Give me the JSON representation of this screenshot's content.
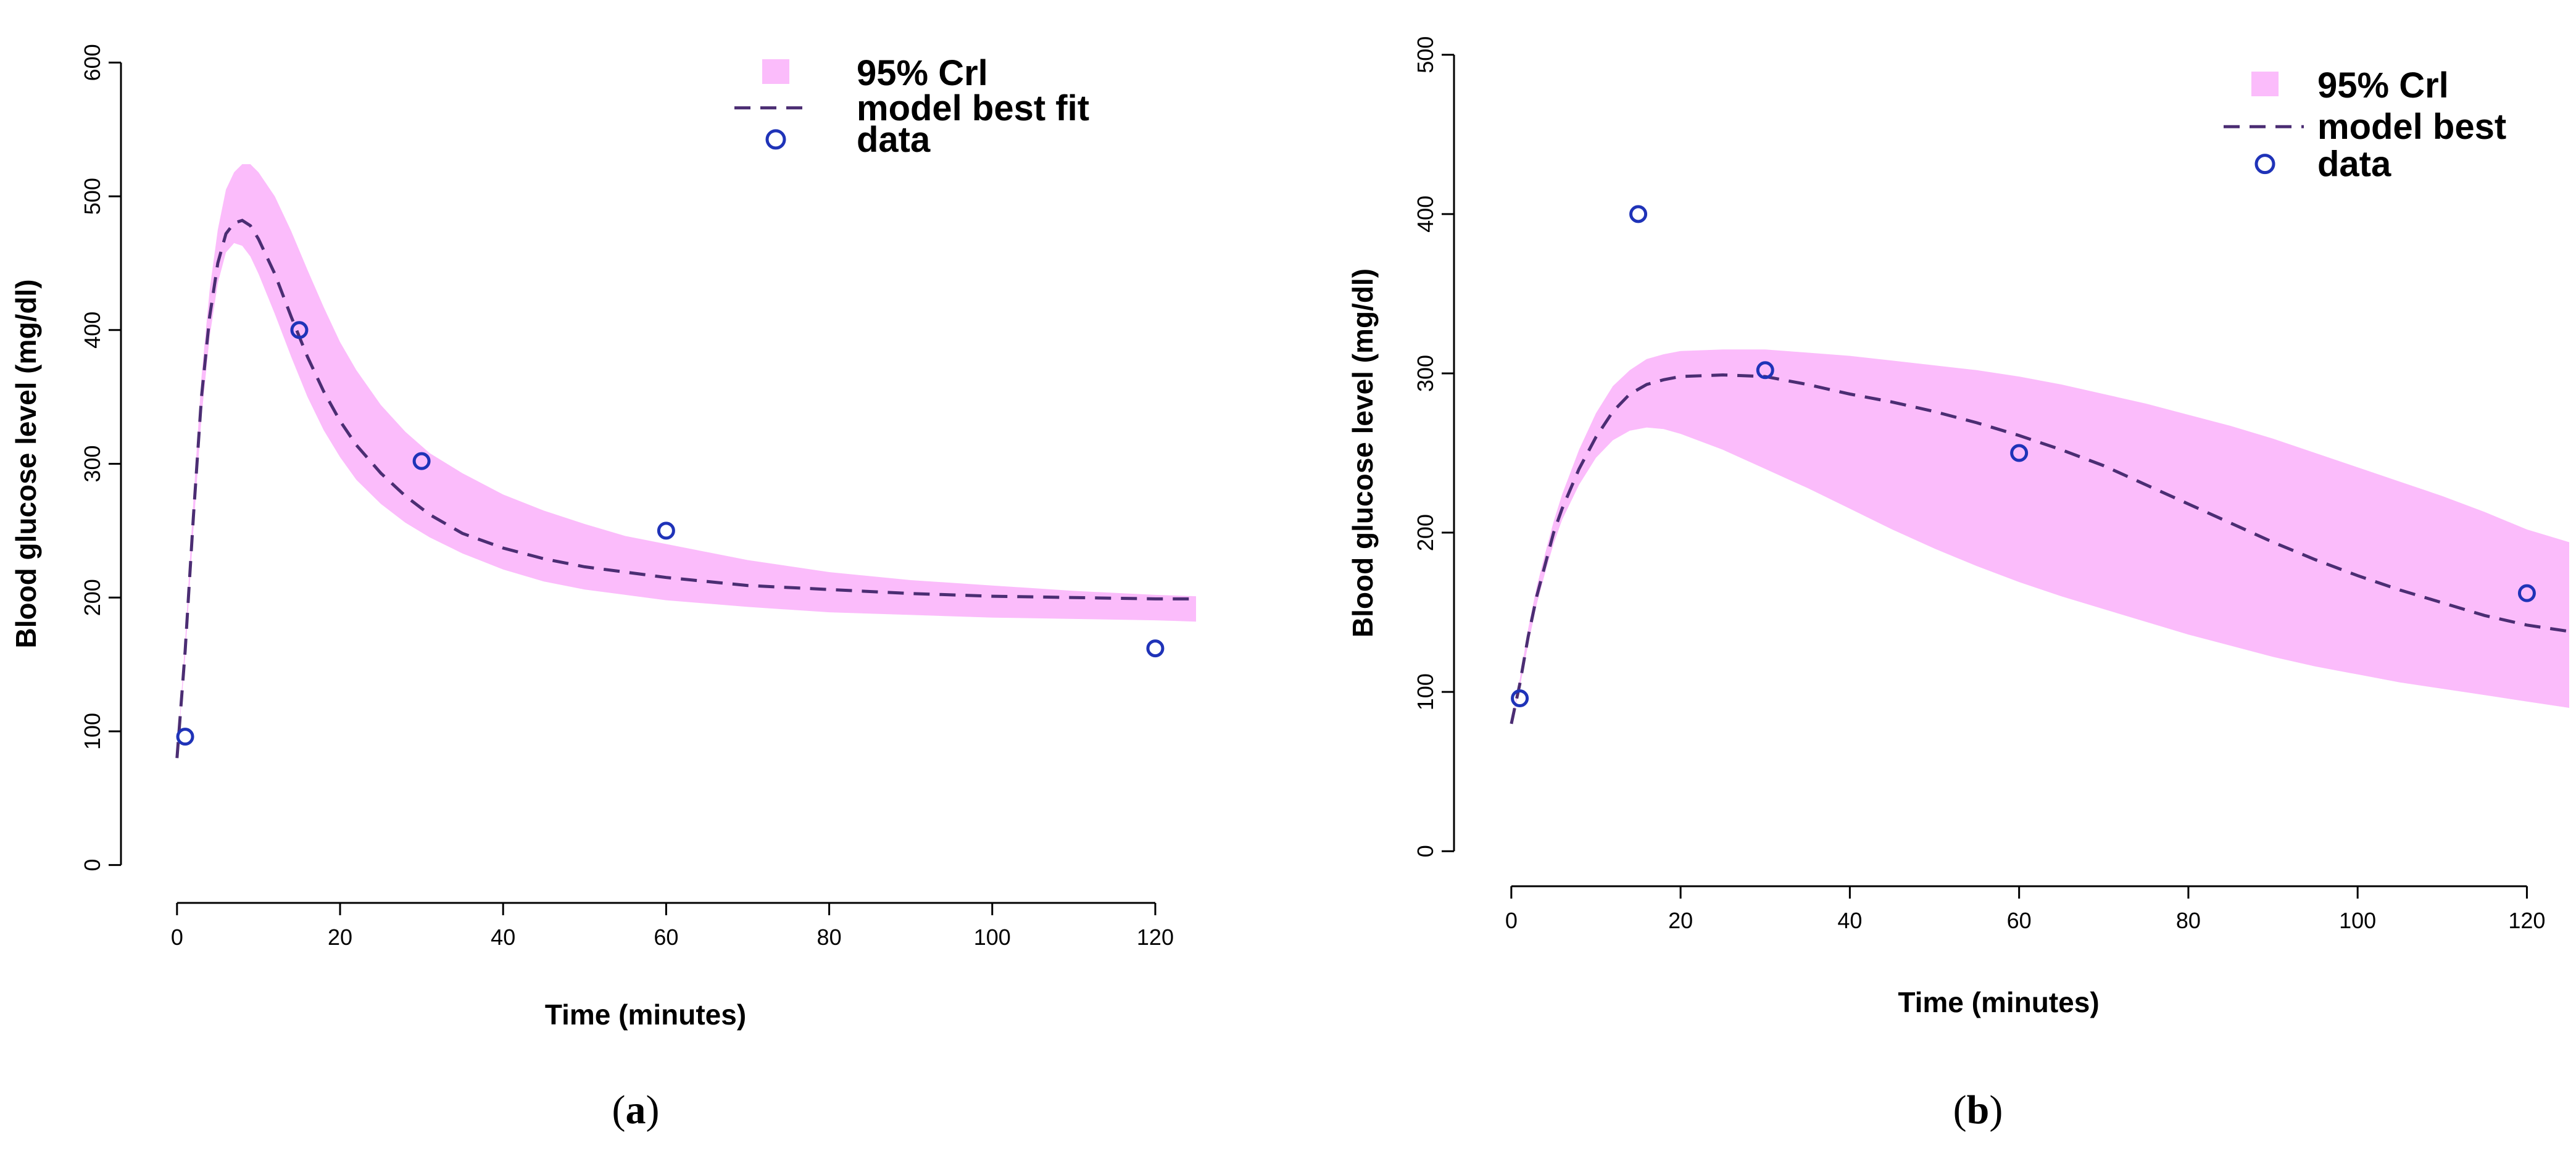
{
  "colors": {
    "band": "#FBBCFB",
    "line": "#4B2D73",
    "points": "#1F33B8",
    "axis": "#000000"
  },
  "chart_data": [
    {
      "type": "line",
      "panel": "a",
      "caption": "(a)",
      "caption_letter": "a",
      "xlabel": "Time (minutes)",
      "ylabel": "Blood glucose level (mg/dl)",
      "xlim": [
        -4,
        125
      ],
      "ylim": [
        -20,
        620
      ],
      "xticks": [
        0,
        20,
        40,
        60,
        80,
        100,
        120
      ],
      "yticks": [
        0,
        100,
        200,
        300,
        400,
        500,
        600
      ],
      "legend": {
        "position": "top-right",
        "entries": [
          {
            "label": "95% Crl",
            "kind": "band"
          },
          {
            "label": "model best fit",
            "kind": "line"
          },
          {
            "label": "data",
            "kind": "point"
          }
        ]
      },
      "best_fit": {
        "x": [
          0,
          1,
          2,
          3,
          4,
          5,
          6,
          7,
          8,
          9,
          10,
          12,
          14,
          16,
          18,
          20,
          22,
          25,
          28,
          31,
          35,
          40,
          45,
          50,
          55,
          60,
          70,
          80,
          90,
          100,
          110,
          120,
          125
        ],
        "y": [
          80,
          160,
          260,
          350,
          410,
          450,
          472,
          480,
          482,
          478,
          468,
          442,
          410,
          380,
          354,
          332,
          314,
          293,
          276,
          262,
          248,
          237,
          229,
          223,
          219,
          215,
          209,
          206,
          203,
          201,
          200,
          199,
          199
        ]
      },
      "band": {
        "x": [
          0,
          1,
          2,
          3,
          4,
          5,
          6,
          7,
          8,
          9,
          10,
          12,
          14,
          16,
          18,
          20,
          22,
          25,
          28,
          31,
          35,
          40,
          45,
          50,
          55,
          60,
          70,
          80,
          90,
          100,
          110,
          120,
          125
        ],
        "lower": [
          80,
          155,
          250,
          335,
          395,
          435,
          458,
          465,
          463,
          455,
          442,
          412,
          380,
          350,
          325,
          305,
          288,
          270,
          256,
          245,
          233,
          221,
          212,
          206,
          202,
          198,
          193,
          189,
          187,
          185,
          184,
          183,
          182
        ],
        "upper": [
          80,
          168,
          272,
          365,
          430,
          475,
          505,
          518,
          524,
          524,
          518,
          500,
          474,
          445,
          417,
          391,
          370,
          344,
          324,
          308,
          293,
          277,
          265,
          255,
          246,
          240,
          228,
          219,
          213,
          209,
          205,
          202,
          201
        ]
      },
      "data_points": {
        "x": [
          1,
          15,
          30,
          60,
          120
        ],
        "y": [
          96,
          400,
          302,
          250,
          162
        ]
      }
    },
    {
      "type": "line",
      "panel": "b",
      "caption": "(b)",
      "caption_letter": "b",
      "xlabel": "Time (minutes)",
      "ylabel": "Blood glucose level (mg/dl)",
      "xlim": [
        -4,
        125
      ],
      "ylim": [
        -15,
        515
      ],
      "xticks": [
        0,
        20,
        40,
        60,
        80,
        100,
        120
      ],
      "yticks": [
        0,
        100,
        200,
        300,
        400,
        500
      ],
      "legend": {
        "position": "top-right",
        "entries": [
          {
            "label": "95% Crl",
            "kind": "band"
          },
          {
            "label": "model best",
            "kind": "line"
          },
          {
            "label": "data",
            "kind": "point"
          }
        ]
      },
      "best_fit": {
        "x": [
          0,
          1,
          2,
          3,
          4,
          5,
          6,
          8,
          10,
          12,
          14,
          16,
          18,
          20,
          25,
          30,
          35,
          40,
          45,
          50,
          55,
          60,
          65,
          70,
          75,
          80,
          85,
          90,
          95,
          100,
          105,
          110,
          115,
          120,
          125
        ],
        "y": [
          80,
          105,
          135,
          160,
          180,
          200,
          215,
          240,
          260,
          276,
          287,
          293,
          296,
          298,
          299,
          298,
          293,
          287,
          282,
          276,
          269,
          261,
          252,
          242,
          230,
          218,
          206,
          194,
          183,
          173,
          164,
          156,
          148,
          142,
          138
        ]
      },
      "band": {
        "x": [
          0,
          1,
          2,
          3,
          4,
          5,
          6,
          8,
          10,
          12,
          14,
          16,
          18,
          20,
          25,
          30,
          35,
          40,
          45,
          50,
          55,
          60,
          65,
          70,
          75,
          80,
          85,
          90,
          95,
          100,
          105,
          110,
          115,
          120,
          125
        ],
        "lower": [
          80,
          103,
          130,
          155,
          175,
          193,
          208,
          230,
          247,
          258,
          264,
          266,
          265,
          262,
          252,
          240,
          228,
          215,
          202,
          190,
          179,
          169,
          160,
          152,
          144,
          136,
          129,
          122,
          116,
          111,
          106,
          102,
          98,
          94,
          90
        ],
        "upper": [
          80,
          108,
          140,
          166,
          187,
          207,
          224,
          252,
          275,
          292,
          302,
          309,
          312,
          314,
          315,
          315,
          313,
          311,
          308,
          305,
          302,
          298,
          293,
          287,
          281,
          274,
          267,
          259,
          250,
          241,
          232,
          223,
          213,
          202,
          194
        ]
      },
      "data_points": {
        "x": [
          1,
          15,
          30,
          60,
          120
        ],
        "y": [
          96,
          400,
          302,
          250,
          162
        ]
      }
    }
  ]
}
